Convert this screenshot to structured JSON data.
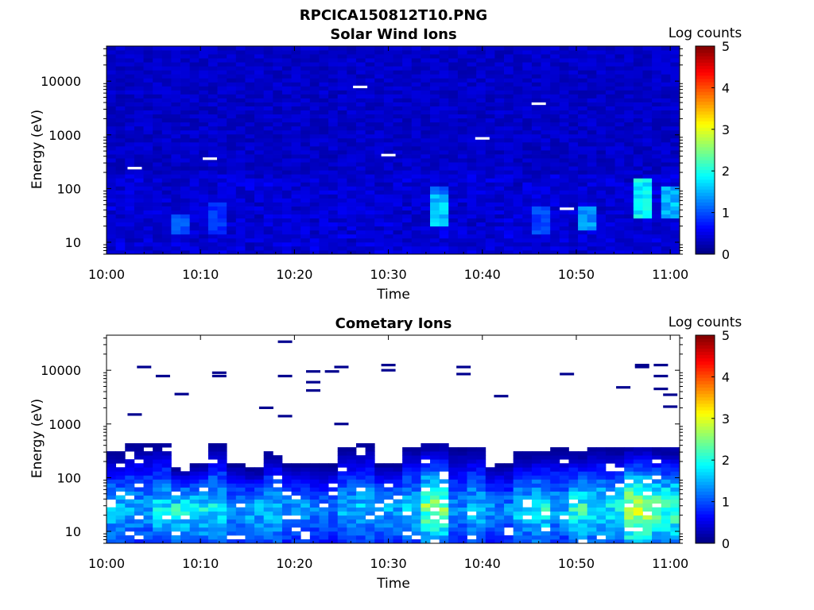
{
  "figure": {
    "filename_title": "RPCICA150812T10.PNG"
  },
  "colors": {
    "background": "#ffffff",
    "axis": "#000000",
    "colormap": "jet"
  },
  "chart_data": [
    {
      "type": "heatmap",
      "title": "Solar Wind Ions",
      "xlabel": "Time",
      "ylabel": "Energy (eV)",
      "x_tick_labels": [
        "10:00",
        "10:10",
        "10:20",
        "10:30",
        "10:40",
        "10:50",
        "11:00"
      ],
      "xlim": [
        "10:00",
        "11:01"
      ],
      "y_scale": "log",
      "y_tick_labels": [
        "10",
        "100",
        "1000",
        "10000"
      ],
      "ylim": [
        6,
        45000
      ],
      "colorbar": {
        "label": "Log counts",
        "ticks": [
          "0",
          "1",
          "2",
          "3",
          "4",
          "5"
        ],
        "range": [
          0,
          5
        ]
      },
      "background_level": 0.35,
      "enhancements": [
        {
          "time": "10:08",
          "energy_range": [
            15,
            35
          ],
          "log_counts": 1.1
        },
        {
          "time": "10:12",
          "energy_range": [
            15,
            60
          ],
          "log_counts": 0.9
        },
        {
          "time": "10:35",
          "energy_range": [
            20,
            80
          ],
          "log_counts": 1.7
        },
        {
          "time": "10:35",
          "energy_range": [
            80,
            120
          ],
          "log_counts": 1.2
        },
        {
          "time": "10:46",
          "energy_range": [
            15,
            45
          ],
          "log_counts": 1.0
        },
        {
          "time": "10:51",
          "energy_range": [
            18,
            45
          ],
          "log_counts": 1.4
        },
        {
          "time": "10:57",
          "energy_range": [
            30,
            150
          ],
          "log_counts": 1.9
        },
        {
          "time": "11:00",
          "energy_range": [
            30,
            120
          ],
          "log_counts": 1.6
        }
      ],
      "missing_data_marks": [
        {
          "time": "10:03",
          "energy": 240
        },
        {
          "time": "10:11",
          "energy": 360
        },
        {
          "time": "10:27",
          "energy": 7800
        },
        {
          "time": "10:30",
          "energy": 420
        },
        {
          "time": "10:40",
          "energy": 860
        },
        {
          "time": "10:46",
          "energy": 3800
        },
        {
          "time": "10:49",
          "energy": 42
        }
      ]
    },
    {
      "type": "heatmap",
      "title": "Cometary Ions",
      "xlabel": "Time",
      "ylabel": "Energy (eV)",
      "x_tick_labels": [
        "10:00",
        "10:10",
        "10:20",
        "10:30",
        "10:40",
        "10:50",
        "11:00"
      ],
      "xlim": [
        "10:00",
        "11:01"
      ],
      "y_scale": "log",
      "y_tick_labels": [
        "10",
        "100",
        "1000",
        "10000"
      ],
      "ylim": [
        6,
        45000
      ],
      "colorbar": {
        "label": "Log counts",
        "ticks": [
          "0",
          "1",
          "2",
          "3",
          "4",
          "5"
        ],
        "range": [
          0,
          5
        ]
      },
      "column_data": [
        {
          "time": "10:00",
          "top_energy": 300,
          "peak_log_counts": 1.8
        },
        {
          "time": "10:03",
          "top_energy": 450,
          "peak_log_counts": 1.6
        },
        {
          "time": "10:06",
          "top_energy": 450,
          "peak_log_counts": 1.9
        },
        {
          "time": "10:08",
          "top_energy": 150,
          "peak_log_counts": 2.1
        },
        {
          "time": "10:10",
          "top_energy": 200,
          "peak_log_counts": 2.0
        },
        {
          "time": "10:12",
          "top_energy": 450,
          "peak_log_counts": 1.9
        },
        {
          "time": "10:14",
          "top_energy": 200,
          "peak_log_counts": 1.5
        },
        {
          "time": "10:16",
          "top_energy": 150,
          "peak_log_counts": 1.7
        },
        {
          "time": "10:18",
          "top_energy": 300,
          "peak_log_counts": 1.8
        },
        {
          "time": "10:20",
          "top_energy": 200,
          "peak_log_counts": 1.5
        },
        {
          "time": "10:23",
          "top_energy": 200,
          "peak_log_counts": 1.3
        },
        {
          "time": "10:26",
          "top_energy": 400,
          "peak_log_counts": 1.6
        },
        {
          "time": "10:28",
          "top_energy": 450,
          "peak_log_counts": 1.7
        },
        {
          "time": "10:30",
          "top_energy": 200,
          "peak_log_counts": 1.6
        },
        {
          "time": "10:32",
          "top_energy": 400,
          "peak_log_counts": 1.8
        },
        {
          "time": "10:35",
          "top_energy": 450,
          "peak_log_counts": 2.6
        },
        {
          "time": "10:37",
          "top_energy": 400,
          "peak_log_counts": 1.4
        },
        {
          "time": "10:39",
          "top_energy": 400,
          "peak_log_counts": 1.8
        },
        {
          "time": "10:42",
          "top_energy": 200,
          "peak_log_counts": 1.4
        },
        {
          "time": "10:44",
          "top_energy": 300,
          "peak_log_counts": 1.8
        },
        {
          "time": "10:46",
          "top_energy": 300,
          "peak_log_counts": 2.1
        },
        {
          "time": "10:48",
          "top_energy": 400,
          "peak_log_counts": 1.6
        },
        {
          "time": "10:50",
          "top_energy": 300,
          "peak_log_counts": 2.2
        },
        {
          "time": "10:52",
          "top_energy": 400,
          "peak_log_counts": 2.0
        },
        {
          "time": "10:54",
          "top_energy": 350,
          "peak_log_counts": 2.0
        },
        {
          "time": "10:57",
          "top_energy": 400,
          "peak_log_counts": 3.0
        },
        {
          "time": "11:00",
          "top_energy": 350,
          "peak_log_counts": 2.5
        }
      ],
      "sparse_high_energy_marks": [
        {
          "time": "10:03",
          "energy": 1500
        },
        {
          "time": "10:04",
          "energy": 11500
        },
        {
          "time": "10:06",
          "energy": 7800
        },
        {
          "time": "10:08",
          "energy": 3600
        },
        {
          "time": "10:12",
          "energy": 9000
        },
        {
          "time": "10:12",
          "energy": 7800
        },
        {
          "time": "10:17",
          "energy": 2000
        },
        {
          "time": "10:19",
          "energy": 34000
        },
        {
          "time": "10:19",
          "energy": 7800
        },
        {
          "time": "10:19",
          "energy": 1400
        },
        {
          "time": "10:22",
          "energy": 9500
        },
        {
          "time": "10:22",
          "energy": 6000
        },
        {
          "time": "10:22",
          "energy": 4200
        },
        {
          "time": "10:24",
          "energy": 9500
        },
        {
          "time": "10:25",
          "energy": 11500
        },
        {
          "time": "10:25",
          "energy": 1000
        },
        {
          "time": "10:30",
          "energy": 12500
        },
        {
          "time": "10:30",
          "energy": 10000
        },
        {
          "time": "10:38",
          "energy": 11500
        },
        {
          "time": "10:38",
          "energy": 8500
        },
        {
          "time": "10:42",
          "energy": 3300
        },
        {
          "time": "10:49",
          "energy": 8500
        },
        {
          "time": "10:55",
          "energy": 4800
        },
        {
          "time": "10:57",
          "energy": 12500
        },
        {
          "time": "10:57",
          "energy": 11500
        },
        {
          "time": "10:59",
          "energy": 12500
        },
        {
          "time": "10:59",
          "energy": 7800
        },
        {
          "time": "10:59",
          "energy": 4500
        },
        {
          "time": "11:00",
          "energy": 3500
        },
        {
          "time": "11:00",
          "energy": 2100
        }
      ]
    }
  ]
}
